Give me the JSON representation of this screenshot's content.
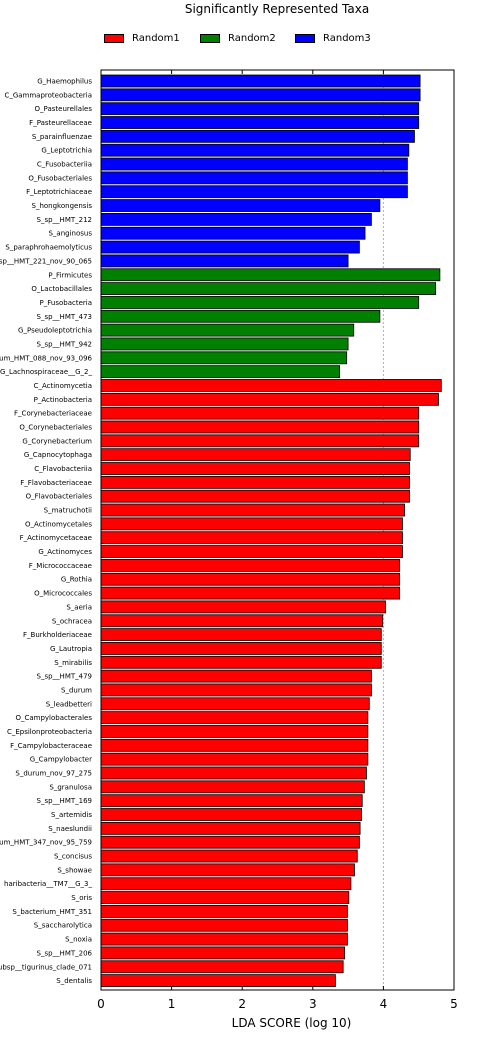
{
  "chart_data": {
    "type": "bar",
    "orientation": "horizontal",
    "title": "Significantly Represented Taxa",
    "xlabel": "LDA SCORE (log 10)",
    "ylabel": "",
    "xlim": [
      0,
      5
    ],
    "xticks": [
      "0",
      "1",
      "2",
      "3",
      "4",
      "5"
    ],
    "grid": "x-dashed",
    "legend_position": "top",
    "series": [
      {
        "name": "Random1",
        "color": "#ff0000"
      },
      {
        "name": "Random2",
        "color": "#008000"
      },
      {
        "name": "Random3",
        "color": "#0000ff"
      }
    ],
    "bars": [
      {
        "label": "G_Haemophilus",
        "value": 4.52,
        "group": "Random3"
      },
      {
        "label": "C_Gammaproteobacteria",
        "value": 4.52,
        "group": "Random3"
      },
      {
        "label": "O_Pasteurellales",
        "value": 4.5,
        "group": "Random3"
      },
      {
        "label": "F_Pasteurellaceae",
        "value": 4.5,
        "group": "Random3"
      },
      {
        "label": "S_parainfluenzae",
        "value": 4.44,
        "group": "Random3"
      },
      {
        "label": "G_Leptotrichia",
        "value": 4.36,
        "group": "Random3"
      },
      {
        "label": "C_Fusobacteriia",
        "value": 4.34,
        "group": "Random3"
      },
      {
        "label": "O_Fusobacteriales",
        "value": 4.34,
        "group": "Random3"
      },
      {
        "label": "F_Leptotrichiaceae",
        "value": 4.34,
        "group": "Random3"
      },
      {
        "label": "S_hongkongensis",
        "value": 3.95,
        "group": "Random3"
      },
      {
        "label": "S_sp__HMT_212",
        "value": 3.83,
        "group": "Random3"
      },
      {
        "label": "S_anginosus",
        "value": 3.74,
        "group": "Random3"
      },
      {
        "label": "S_paraphrohaemolyticus",
        "value": 3.66,
        "group": "Random3"
      },
      {
        "label": "sp__HMT_221_nov_90_065",
        "value": 3.5,
        "group": "Random3"
      },
      {
        "label": "P_Firmicutes",
        "value": 4.8,
        "group": "Random2"
      },
      {
        "label": "O_Lactobacillales",
        "value": 4.74,
        "group": "Random2"
      },
      {
        "label": "P_Fusobacteria",
        "value": 4.5,
        "group": "Random2"
      },
      {
        "label": "S_sp__HMT_473",
        "value": 3.95,
        "group": "Random2"
      },
      {
        "label": "G_Pseudoleptotrichia",
        "value": 3.58,
        "group": "Random2"
      },
      {
        "label": "S_sp__HMT_942",
        "value": 3.5,
        "group": "Random2"
      },
      {
        "label": "um_HMT_088_nov_93_096",
        "value": 3.48,
        "group": "Random2"
      },
      {
        "label": "G_Lachnospiraceae__G_2_",
        "value": 3.38,
        "group": "Random2"
      },
      {
        "label": "C_Actinomycetia",
        "value": 4.82,
        "group": "Random1"
      },
      {
        "label": "P_Actinobacteria",
        "value": 4.78,
        "group": "Random1"
      },
      {
        "label": "F_Corynebacteriaceae",
        "value": 4.5,
        "group": "Random1"
      },
      {
        "label": "O_Corynebacteriales",
        "value": 4.5,
        "group": "Random1"
      },
      {
        "label": "G_Corynebacterium",
        "value": 4.5,
        "group": "Random1"
      },
      {
        "label": "G_Capnocytophaga",
        "value": 4.38,
        "group": "Random1"
      },
      {
        "label": "C_Flavobacteriia",
        "value": 4.37,
        "group": "Random1"
      },
      {
        "label": "F_Flavobacteriaceae",
        "value": 4.37,
        "group": "Random1"
      },
      {
        "label": "O_Flavobacteriales",
        "value": 4.37,
        "group": "Random1"
      },
      {
        "label": "S_matruchotii",
        "value": 4.3,
        "group": "Random1"
      },
      {
        "label": "O_Actinomycetales",
        "value": 4.27,
        "group": "Random1"
      },
      {
        "label": "F_Actinomycetaceae",
        "value": 4.27,
        "group": "Random1"
      },
      {
        "label": "G_Actinomyces",
        "value": 4.27,
        "group": "Random1"
      },
      {
        "label": "F_Micrococcaceae",
        "value": 4.23,
        "group": "Random1"
      },
      {
        "label": "G_Rothia",
        "value": 4.23,
        "group": "Random1"
      },
      {
        "label": "O_Micrococcales",
        "value": 4.23,
        "group": "Random1"
      },
      {
        "label": "S_aeria",
        "value": 4.03,
        "group": "Random1"
      },
      {
        "label": "S_ochracea",
        "value": 3.99,
        "group": "Random1"
      },
      {
        "label": "F_Burkholderiaceae",
        "value": 3.97,
        "group": "Random1"
      },
      {
        "label": "G_Lautropia",
        "value": 3.97,
        "group": "Random1"
      },
      {
        "label": "S_mirabilis",
        "value": 3.97,
        "group": "Random1"
      },
      {
        "label": "S_sp__HMT_479",
        "value": 3.83,
        "group": "Random1"
      },
      {
        "label": "S_durum",
        "value": 3.83,
        "group": "Random1"
      },
      {
        "label": "S_leadbetteri",
        "value": 3.8,
        "group": "Random1"
      },
      {
        "label": "O_Campylobacterales",
        "value": 3.78,
        "group": "Random1"
      },
      {
        "label": "C_Epsilonproteobacteria",
        "value": 3.78,
        "group": "Random1"
      },
      {
        "label": "F_Campylobacteraceae",
        "value": 3.78,
        "group": "Random1"
      },
      {
        "label": "G_Campylobacter",
        "value": 3.78,
        "group": "Random1"
      },
      {
        "label": "S_durum_nov_97_275",
        "value": 3.76,
        "group": "Random1"
      },
      {
        "label": "S_granulosa",
        "value": 3.73,
        "group": "Random1"
      },
      {
        "label": "S_sp__HMT_169",
        "value": 3.7,
        "group": "Random1"
      },
      {
        "label": "S_artemidis",
        "value": 3.69,
        "group": "Random1"
      },
      {
        "label": "S_naeslundii",
        "value": 3.67,
        "group": "Random1"
      },
      {
        "label": "um_HMT_347_nov_95_759",
        "value": 3.66,
        "group": "Random1"
      },
      {
        "label": "S_concisus",
        "value": 3.63,
        "group": "Random1"
      },
      {
        "label": "S_showae",
        "value": 3.59,
        "group": "Random1"
      },
      {
        "label": "haribacteria__TM7__G_3_",
        "value": 3.54,
        "group": "Random1"
      },
      {
        "label": "S_oris",
        "value": 3.51,
        "group": "Random1"
      },
      {
        "label": "S_bacterium_HMT_351",
        "value": 3.49,
        "group": "Random1"
      },
      {
        "label": "S_saccharolytica",
        "value": 3.49,
        "group": "Random1"
      },
      {
        "label": "S_noxia",
        "value": 3.49,
        "group": "Random1"
      },
      {
        "label": "S_sp__HMT_206",
        "value": 3.45,
        "group": "Random1"
      },
      {
        "label": "ubsp__tigurinus_clade_071",
        "value": 3.43,
        "group": "Random1"
      },
      {
        "label": "S_dentalis",
        "value": 3.32,
        "group": "Random1"
      }
    ]
  }
}
